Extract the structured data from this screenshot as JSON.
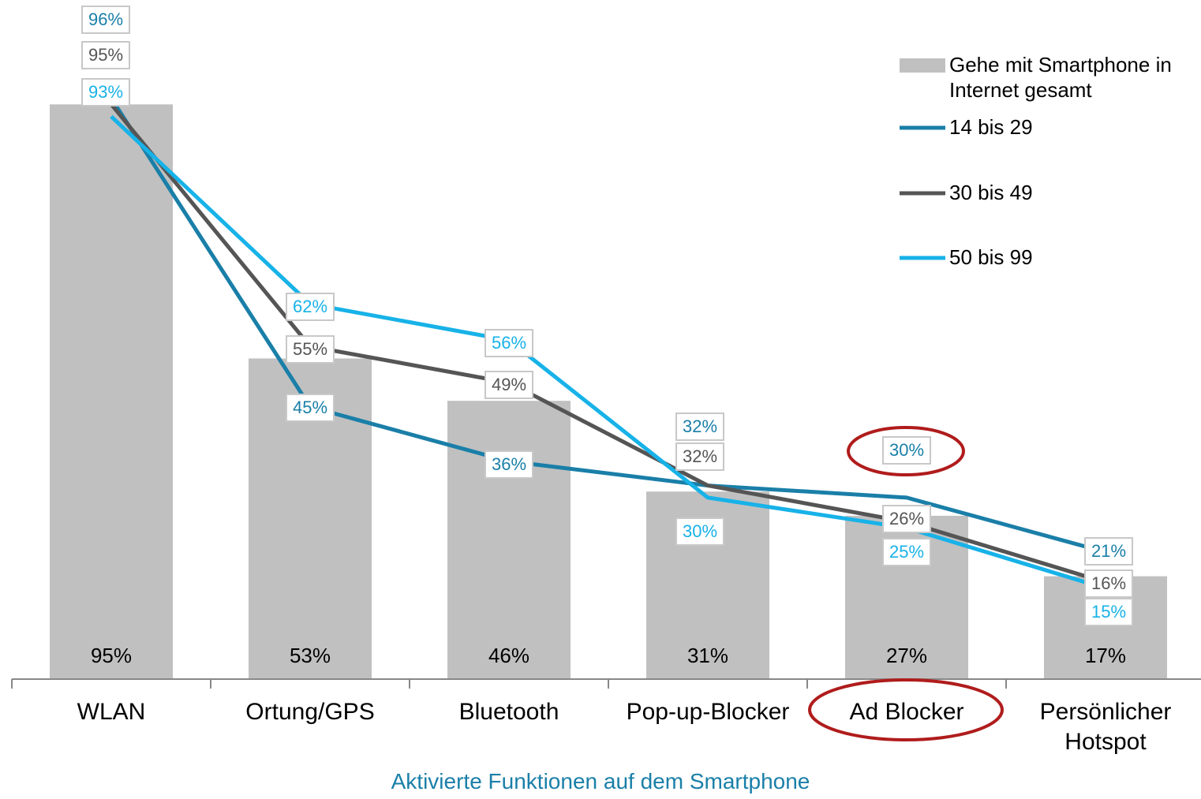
{
  "chart_data": {
    "type": "bar",
    "categories": [
      "WLAN",
      "Ortung/GPS",
      "Bluetooth",
      "Pop-up-Blocker",
      "Ad Blocker",
      "Persönlicher Hotspot"
    ],
    "values": [
      95,
      53,
      46,
      31,
      27,
      17
    ],
    "value_labels": [
      "95%",
      "53%",
      "46%",
      "31%",
      "27%",
      "17%"
    ],
    "name": "Gehe mit Smartphone in Internet gesamt",
    "color": "#c0c0c0",
    "ylim": [
      0,
      100
    ],
    "x_label": "Aktivierte Funktionen auf dem Smartphone",
    "series": [
      {
        "name": "14 bis 29",
        "color": "#1a7fa8",
        "values": [
          96,
          45,
          36,
          32,
          30,
          21
        ],
        "value_labels": [
          "96%",
          "45%",
          "36%",
          "32%",
          "30%",
          "21%"
        ]
      },
      {
        "name": "30 bis 49",
        "color": "#555555",
        "values": [
          95,
          55,
          49,
          32,
          26,
          16
        ],
        "value_labels": [
          "95%",
          "55%",
          "49%",
          "32%",
          "26%",
          "16%"
        ]
      },
      {
        "name": "50 bis 99",
        "color": "#17b2e8",
        "values": [
          93,
          62,
          56,
          30,
          25,
          15
        ],
        "value_labels": [
          "93%",
          "62%",
          "56%",
          "30%",
          "25%",
          "15%"
        ]
      }
    ]
  }
}
